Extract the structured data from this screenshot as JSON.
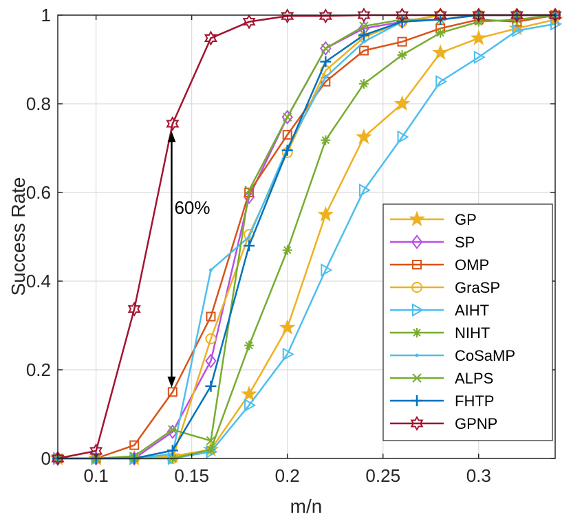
{
  "chart_data": {
    "type": "line",
    "xlabel": "m/n",
    "ylabel": "Success Rate",
    "xlim": [
      0.08,
      0.34
    ],
    "ylim": [
      0,
      1
    ],
    "grid": true,
    "legend_position": "lower-right",
    "x_ticks": [
      0.1,
      0.15,
      0.2,
      0.25,
      0.3
    ],
    "x_tick_labels": [
      "0.1",
      "0.15",
      "0.2",
      "0.25",
      "0.3"
    ],
    "y_ticks": [
      0,
      0.2,
      0.4,
      0.6,
      0.8,
      1
    ],
    "y_tick_labels": [
      "0",
      "0.2",
      "0.4",
      "0.6",
      "0.8",
      "1"
    ],
    "x": [
      0.08,
      0.1,
      0.12,
      0.14,
      0.16,
      0.18,
      0.2,
      0.22,
      0.24,
      0.26,
      0.28,
      0.3,
      0.32,
      0.34
    ],
    "series": [
      {
        "name": "GP",
        "color": "#EDB120",
        "marker": "star",
        "values": [
          0,
          0,
          0,
          0.005,
          0.02,
          0.145,
          0.295,
          0.55,
          0.725,
          0.8,
          0.915,
          0.948,
          0.97,
          0.99
        ]
      },
      {
        "name": "SP",
        "color": "#B94FE8",
        "marker": "diamond",
        "values": [
          0,
          0,
          0,
          0.06,
          0.22,
          0.59,
          0.77,
          0.925,
          0.97,
          0.985,
          1.0,
          1.0,
          1.0,
          1.0
        ]
      },
      {
        "name": "OMP",
        "color": "#D95319",
        "marker": "square",
        "values": [
          0,
          0,
          0.03,
          0.15,
          0.32,
          0.6,
          0.73,
          0.85,
          0.92,
          0.94,
          0.97,
          0.99,
          0.985,
          1.0
        ]
      },
      {
        "name": "GraSP",
        "color": "#EDB120",
        "marker": "circle",
        "values": [
          0,
          0,
          0,
          0,
          0.27,
          0.505,
          0.69,
          0.875,
          0.95,
          0.985,
          1.0,
          1.0,
          1.0,
          1.0
        ]
      },
      {
        "name": "AIHT",
        "color": "#4DBEEE",
        "marker": "triangle-right",
        "values": [
          0,
          0,
          0,
          0,
          0.015,
          0.12,
          0.235,
          0.425,
          0.605,
          0.725,
          0.85,
          0.905,
          0.965,
          0.98
        ]
      },
      {
        "name": "NIHT",
        "color": "#77AC30",
        "marker": "asterisk",
        "values": [
          0,
          0,
          0,
          0,
          0.02,
          0.255,
          0.47,
          0.718,
          0.845,
          0.91,
          0.96,
          0.985,
          0.99,
          1.0
        ]
      },
      {
        "name": "CoSaMP",
        "color": "#4DBEEE",
        "marker": "point",
        "values": [
          0,
          0,
          0,
          0.01,
          0.425,
          0.5,
          0.7,
          0.86,
          0.94,
          0.985,
          0.99,
          1.0,
          1.0,
          1.0
        ]
      },
      {
        "name": "ALPS",
        "color": "#77AC30",
        "marker": "x",
        "values": [
          0,
          0,
          0.005,
          0.065,
          0.04,
          0.605,
          0.77,
          0.925,
          0.975,
          0.99,
          0.99,
          1.0,
          1.0,
          1.0
        ]
      },
      {
        "name": "FHTP",
        "color": "#0072BD",
        "marker": "plus",
        "values": [
          0,
          0,
          0,
          0.018,
          0.163,
          0.48,
          0.695,
          0.895,
          0.955,
          0.985,
          0.99,
          1.0,
          1.0,
          1.0
        ]
      },
      {
        "name": "GPNP",
        "color": "#A2142F",
        "marker": "hexagram",
        "values": [
          0,
          0.017,
          0.337,
          0.755,
          0.948,
          0.985,
          0.998,
          0.998,
          1.0,
          1.0,
          1.0,
          1.0,
          1.0,
          1.0
        ]
      }
    ],
    "annotations": [
      {
        "text": "60%",
        "x": 0.14,
        "y": 0.45,
        "arrow_from": 0.163,
        "arrow_to": 0.735
      }
    ]
  }
}
